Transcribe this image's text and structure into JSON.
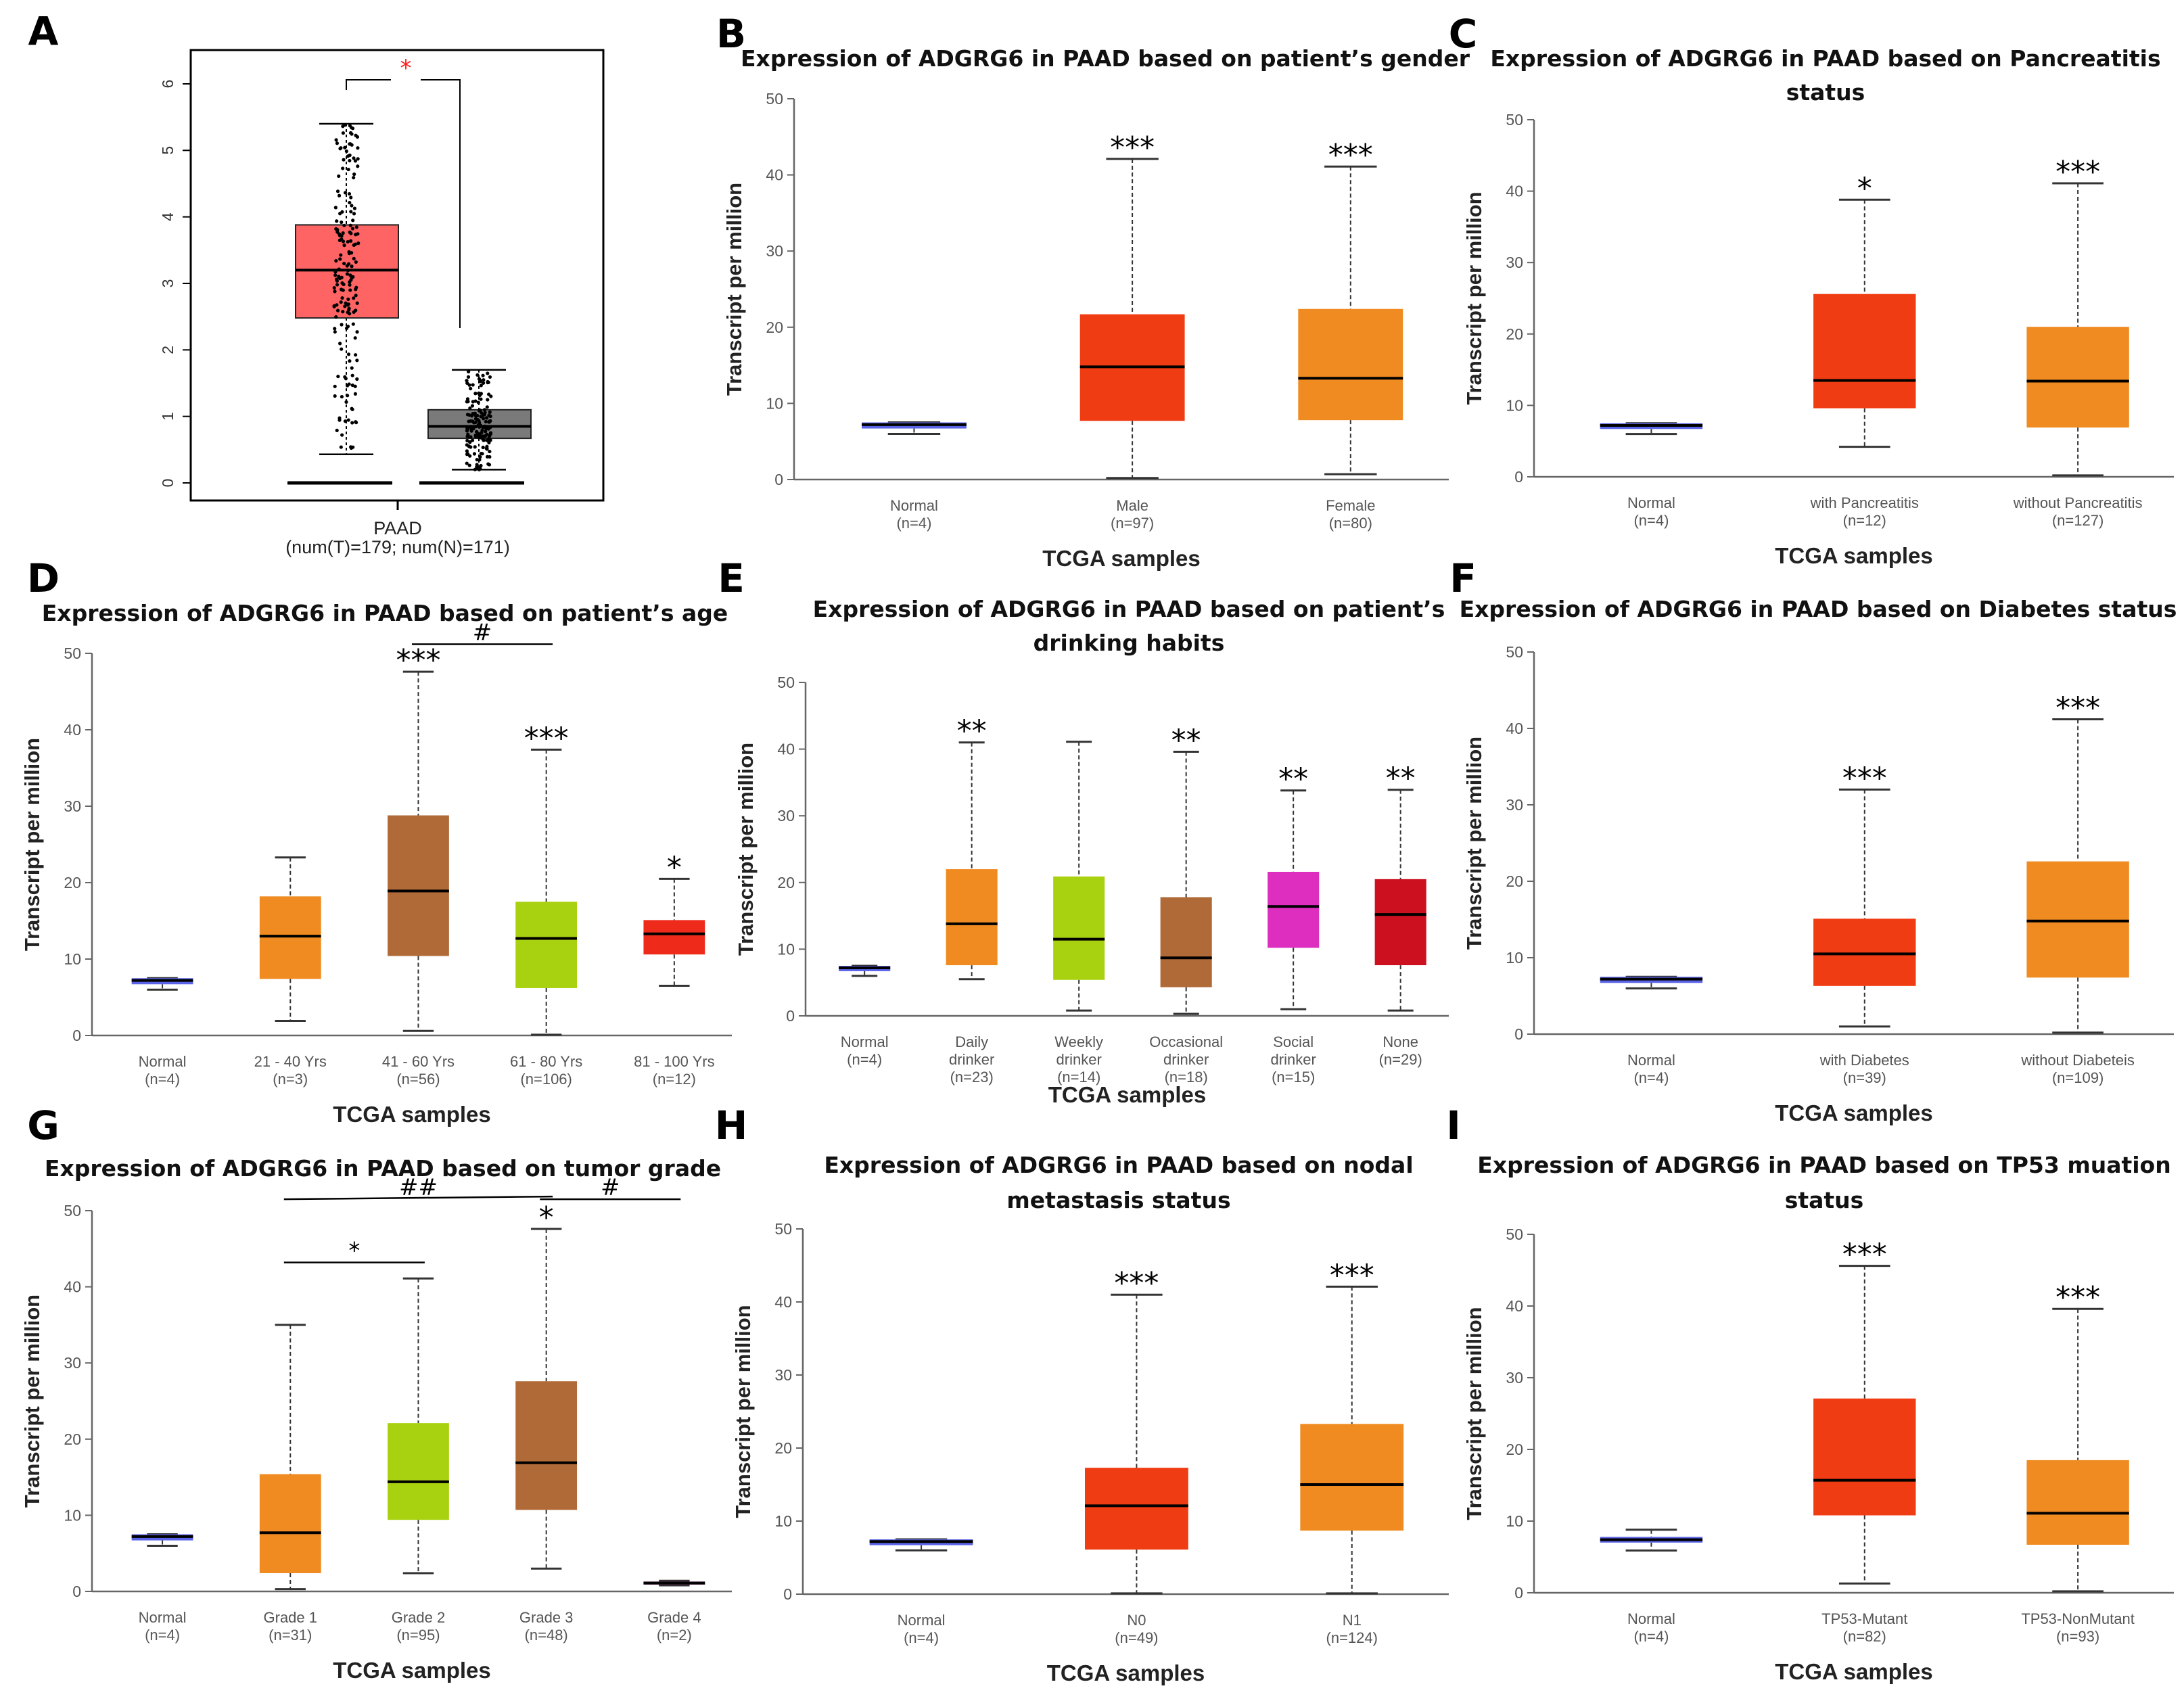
{
  "chart_data": [
    {
      "panel": "A",
      "type": "box",
      "category_label": "PAAD",
      "category_sub": "(num(T)=179; num(N)=171)",
      "ylim": [
        0,
        6.5
      ],
      "yticks": [
        0,
        1,
        2,
        3,
        4,
        5,
        6
      ],
      "series": [
        {
          "group": "Tumor",
          "color": "#fe6464",
          "min": 0.43,
          "q1": 2.48,
          "median": 3.2,
          "q3": 3.88,
          "max": 5.4,
          "n": 179
        },
        {
          "group": "Normal",
          "color": "#7a7a7a",
          "min": 0.2,
          "q1": 0.67,
          "median": 0.85,
          "q3": 1.1,
          "max": 1.7,
          "n": 171
        }
      ],
      "significance": "*",
      "significance_color": "#ff2020"
    },
    {
      "panel": "B",
      "type": "box",
      "title": [
        "Expression of ADGRG6 in PAAD based on patient’s gender"
      ],
      "ylabel": "Transcript per million",
      "xlabel": "TCGA samples",
      "ylim": [
        0,
        50
      ],
      "yticks": [
        0,
        10,
        20,
        30,
        40,
        50
      ],
      "categories": [
        {
          "name": "Normal",
          "n": "(n=4)",
          "color": "#5a63e6",
          "min": 6,
          "q1": 6.7,
          "median": 7.2,
          "q3": 7.5,
          "max": 7.5,
          "stars": ""
        },
        {
          "name": "Male",
          "n": "(n=97)",
          "color": "#f03c12",
          "min": 0.2,
          "q1": 7.7,
          "median": 14.8,
          "q3": 21.7,
          "max": 42.1,
          "stars": "***"
        },
        {
          "name": "Female",
          "n": "(n=80)",
          "color": "#ef8b20",
          "min": 0.7,
          "q1": 7.8,
          "median": 13.3,
          "q3": 22.4,
          "max": 41.1,
          "stars": "***"
        }
      ]
    },
    {
      "panel": "C",
      "type": "box",
      "title": [
        "Expression of ADGRG6 in PAAD based on Pancreatitis",
        "status"
      ],
      "ylabel": "Transcript per million",
      "xlabel": "TCGA samples",
      "ylim": [
        0,
        50
      ],
      "yticks": [
        0,
        10,
        20,
        30,
        40,
        50
      ],
      "categories": [
        {
          "name": "Normal",
          "n": "(n=4)",
          "color": "#5a63e6",
          "min": 6,
          "q1": 6.7,
          "median": 7.2,
          "q3": 7.5,
          "max": 7.5,
          "stars": ""
        },
        {
          "name": "with Pancreatitis",
          "n": "(n=12)",
          "color": "#f03c12",
          "min": 4.2,
          "q1": 9.6,
          "median": 13.5,
          "q3": 25.6,
          "max": 38.8,
          "stars": "*"
        },
        {
          "name": "without Pancreatitis",
          "n": "(n=127)",
          "color": "#ef8b20",
          "min": 0.2,
          "q1": 6.9,
          "median": 13.4,
          "q3": 21.0,
          "max": 41.1,
          "stars": "***"
        }
      ]
    },
    {
      "panel": "D",
      "type": "box",
      "title": [
        "Expression of ADGRG6 in PAAD based on patient’s age"
      ],
      "ylabel": "Transcript per million",
      "xlabel": "TCGA samples",
      "ylim": [
        0,
        50
      ],
      "yticks": [
        0,
        10,
        20,
        30,
        40,
        50
      ],
      "categories": [
        {
          "name": "Normal",
          "n": "(n=4)",
          "color": "#5a63e6",
          "min": 6,
          "q1": 6.7,
          "median": 7.2,
          "q3": 7.5,
          "max": 7.5,
          "stars": ""
        },
        {
          "name": "21 - 40 Yrs",
          "n": "(n=3)",
          "color": "#ef8b20",
          "min": 1.9,
          "q1": 7.4,
          "median": 13,
          "q3": 18.2,
          "max": 23.3,
          "stars": ""
        },
        {
          "name": "41 - 60 Yrs",
          "n": "(n=56)",
          "color": "#b06a37",
          "min": 0.6,
          "q1": 10.4,
          "median": 18.9,
          "q3": 28.8,
          "max": 47.6,
          "stars": "***"
        },
        {
          "name": "61 - 80 Yrs",
          "n": "(n=106)",
          "color": "#a8d10f",
          "min": 0.1,
          "q1": 6.2,
          "median": 12.7,
          "q3": 17.5,
          "max": 37.4,
          "stars": "***"
        },
        {
          "name": "81 - 100 Yrs",
          "n": "(n=12)",
          "color": "#ee2a1a",
          "min": 6.5,
          "q1": 10.6,
          "median": 13.3,
          "q3": 15.1,
          "max": 20.5,
          "stars": "*"
        }
      ],
      "brackets": [
        {
          "from": 2,
          "to": 3,
          "y": 51.2,
          "label": "#"
        }
      ]
    },
    {
      "panel": "E",
      "type": "box",
      "title": [
        "Expression of ADGRG6 in PAAD based on patient’s",
        "drinking habits"
      ],
      "ylabel": "Transcript per million",
      "xlabel": "TCGA samples",
      "ylim": [
        0,
        50
      ],
      "yticks": [
        0,
        10,
        20,
        30,
        40,
        50
      ],
      "categories": [
        {
          "name": "Normal",
          "n": "(n=4)",
          "color": "#5a63e6",
          "min": 6,
          "q1": 6.7,
          "median": 7.2,
          "q3": 7.5,
          "max": 7.5,
          "stars": ""
        },
        {
          "name": "Daily drinker",
          "n": "(n=23)",
          "color": "#ef8b20",
          "min": 5.5,
          "q1": 7.6,
          "median": 13.8,
          "q3": 22,
          "max": 41,
          "stars": "**"
        },
        {
          "name": "Weekly drinker",
          "n": "(n=14)",
          "color": "#a8d10f",
          "min": 0.8,
          "q1": 5.4,
          "median": 11.5,
          "q3": 20.9,
          "max": 41.1,
          "stars": ""
        },
        {
          "name": "Occasional drinker",
          "n": "(n=18)",
          "color": "#b06a37",
          "min": 0.3,
          "q1": 4.3,
          "median": 8.7,
          "q3": 17.8,
          "max": 39.6,
          "stars": "**"
        },
        {
          "name": "Social drinker",
          "n": "(n=15)",
          "color": "#dd2ec0",
          "min": 1,
          "q1": 10.2,
          "median": 16.4,
          "q3": 21.6,
          "max": 33.8,
          "stars": "**"
        },
        {
          "name": "None",
          "n": "(n=29)",
          "color": "#cc1020",
          "min": 0.8,
          "q1": 7.6,
          "median": 15.2,
          "q3": 20.5,
          "max": 33.9,
          "stars": "**"
        }
      ]
    },
    {
      "panel": "F",
      "type": "box",
      "title": [
        "Expression of ADGRG6 in PAAD based on Diabetes status"
      ],
      "ylabel": "Transcript per million",
      "xlabel": "TCGA samples",
      "ylim": [
        0,
        50
      ],
      "yticks": [
        0,
        10,
        20,
        30,
        40,
        50
      ],
      "categories": [
        {
          "name": "Normal",
          "n": "(n=4)",
          "color": "#5a63e6",
          "min": 6,
          "q1": 6.7,
          "median": 7.2,
          "q3": 7.5,
          "max": 7.5,
          "stars": ""
        },
        {
          "name": "with Diabetes",
          "n": "(n=39)",
          "color": "#f03c12",
          "min": 1,
          "q1": 6.3,
          "median": 10.5,
          "q3": 15.1,
          "max": 32,
          "stars": "***"
        },
        {
          "name": "without Diabeteis",
          "n": "(n=109)",
          "color": "#ef8b20",
          "min": 0.2,
          "q1": 7.4,
          "median": 14.8,
          "q3": 22.6,
          "max": 41.2,
          "stars": "***"
        }
      ]
    },
    {
      "panel": "G",
      "type": "box",
      "title": [
        "Expression of ADGRG6 in PAAD based on tumor grade"
      ],
      "ylabel": "Transcript per million",
      "xlabel": "TCGA samples",
      "ylim": [
        0,
        50
      ],
      "yticks": [
        0,
        10,
        20,
        30,
        40,
        50
      ],
      "categories": [
        {
          "name": "Normal",
          "n": "(n=4)",
          "color": "#5a63e6",
          "min": 6,
          "q1": 6.7,
          "median": 7.2,
          "q3": 7.5,
          "max": 7.5,
          "stars": ""
        },
        {
          "name": "Grade 1",
          "n": "(n=31)",
          "color": "#ef8b20",
          "min": 0.3,
          "q1": 2.4,
          "median": 7.7,
          "q3": 15.4,
          "max": 35,
          "stars": ""
        },
        {
          "name": "Grade 2",
          "n": "(n=95)",
          "color": "#a8d10f",
          "min": 2.4,
          "q1": 9.4,
          "median": 14.4,
          "q3": 22.1,
          "max": 41.1,
          "stars": ""
        },
        {
          "name": "Grade 3",
          "n": "(n=48)",
          "color": "#b06a37",
          "min": 3,
          "q1": 10.7,
          "median": 16.9,
          "q3": 27.6,
          "max": 47.6,
          "stars": "*"
        },
        {
          "name": "Grade 4",
          "n": "(n=2)",
          "color": "#8a2a7a",
          "min": 0.8,
          "q1": 0.9,
          "median": 1.1,
          "q3": 1.3,
          "max": 1.4,
          "stars": ""
        }
      ],
      "brackets": [
        {
          "from": 1,
          "to": 2,
          "y": 43.2,
          "label": "*"
        },
        {
          "from": 1,
          "to": 3,
          "y": 51.5,
          "label": "##"
        },
        {
          "from": 3,
          "to": 4,
          "y": 51.5,
          "label": "#"
        }
      ]
    },
    {
      "panel": "H",
      "type": "box",
      "title": [
        "Expression of ADGRG6 in PAAD based on nodal",
        "metastasis status"
      ],
      "ylabel": "Transcript per million",
      "xlabel": "TCGA samples",
      "ylim": [
        0,
        50
      ],
      "yticks": [
        0,
        10,
        20,
        30,
        40,
        50
      ],
      "categories": [
        {
          "name": "Normal",
          "n": "(n=4)",
          "color": "#5a63e6",
          "min": 6,
          "q1": 6.7,
          "median": 7.2,
          "q3": 7.5,
          "max": 7.5,
          "stars": ""
        },
        {
          "name": "N0",
          "n": "(n=49)",
          "color": "#f03c12",
          "min": 0.1,
          "q1": 6.1,
          "median": 12.1,
          "q3": 17.3,
          "max": 41,
          "stars": "***"
        },
        {
          "name": "N1",
          "n": "(n=124)",
          "color": "#ef8b20",
          "min": 0.1,
          "q1": 8.7,
          "median": 15,
          "q3": 23.3,
          "max": 42.1,
          "stars": "***"
        }
      ]
    },
    {
      "panel": "I",
      "type": "box",
      "title": [
        "Expression of ADGRG6 in PAAD based on TP53 muation",
        "status"
      ],
      "ylabel": "Transcript per million",
      "xlabel": "TCGA samples",
      "ylim": [
        0,
        50
      ],
      "yticks": [
        0,
        10,
        20,
        30,
        40,
        50
      ],
      "categories": [
        {
          "name": "Normal",
          "n": "(n=4)",
          "color": "#5a63e6",
          "min": 5.9,
          "q1": 7,
          "median": 7.4,
          "q3": 7.8,
          "max": 8.8,
          "stars": ""
        },
        {
          "name": "TP53-Mutant",
          "n": "(n=82)",
          "color": "#f03c12",
          "min": 1.3,
          "q1": 10.8,
          "median": 15.7,
          "q3": 27.1,
          "max": 45.6,
          "stars": "***"
        },
        {
          "name": "TP53-NonMutant",
          "n": "(n=93)",
          "color": "#ef8b20",
          "min": 0.2,
          "q1": 6.7,
          "median": 11.1,
          "q3": 18.5,
          "max": 39.6,
          "stars": "***"
        }
      ]
    }
  ]
}
